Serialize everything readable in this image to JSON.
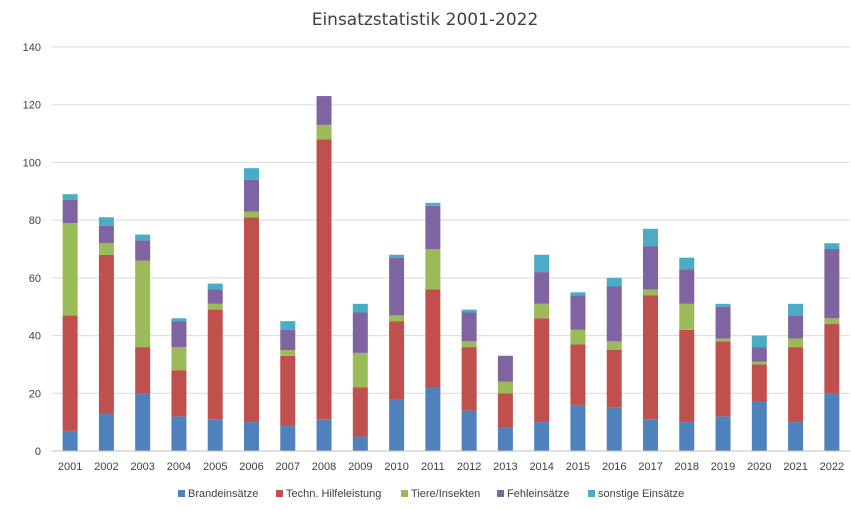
{
  "chart_data": {
    "type": "bar",
    "stacked": true,
    "title": "Einsatzstatistik 2001-2022",
    "xlabel": "",
    "ylabel": "",
    "ylim": [
      0,
      140
    ],
    "yticks": [
      0,
      20,
      40,
      60,
      80,
      100,
      120,
      140
    ],
    "grid": true,
    "legend_position": "bottom",
    "categories": [
      "2001",
      "2002",
      "2003",
      "2004",
      "2005",
      "2006",
      "2007",
      "2008",
      "2009",
      "2010",
      "2011",
      "2012",
      "2013",
      "2014",
      "2015",
      "2016",
      "2017",
      "2018",
      "2019",
      "2020",
      "2021",
      "2022"
    ],
    "series": [
      {
        "name": "Brandeinsätze",
        "color": "#4f81bd",
        "values": [
          7,
          13,
          20,
          12,
          11,
          10,
          9,
          11,
          5,
          18,
          22,
          14,
          8,
          10,
          16,
          15,
          11,
          10,
          12,
          17,
          10,
          20
        ]
      },
      {
        "name": "Techn. Hilfeleistung",
        "color": "#c0504d",
        "values": [
          40,
          55,
          16,
          16,
          38,
          71,
          24,
          97,
          17,
          27,
          34,
          22,
          12,
          36,
          21,
          20,
          43,
          32,
          26,
          13,
          26,
          24
        ]
      },
      {
        "name": "Tiere/Insekten",
        "color": "#9bbb59",
        "values": [
          32,
          4,
          30,
          8,
          2,
          2,
          2,
          5,
          12,
          2,
          14,
          2,
          4,
          5,
          5,
          3,
          2,
          9,
          1,
          1,
          3,
          2
        ]
      },
      {
        "name": "Fehleinsätze",
        "color": "#8064a2",
        "values": [
          8,
          6,
          7,
          9,
          5,
          11,
          7,
          10,
          14,
          20,
          15,
          10,
          9,
          11,
          12,
          19,
          15,
          12,
          11,
          5,
          8,
          24
        ]
      },
      {
        "name": "sonstige Einsätze",
        "color": "#4bacc6",
        "values": [
          2,
          3,
          2,
          1,
          2,
          4,
          3,
          0,
          3,
          1,
          1,
          1,
          0,
          6,
          1,
          3,
          6,
          4,
          1,
          4,
          4,
          2
        ]
      }
    ]
  }
}
